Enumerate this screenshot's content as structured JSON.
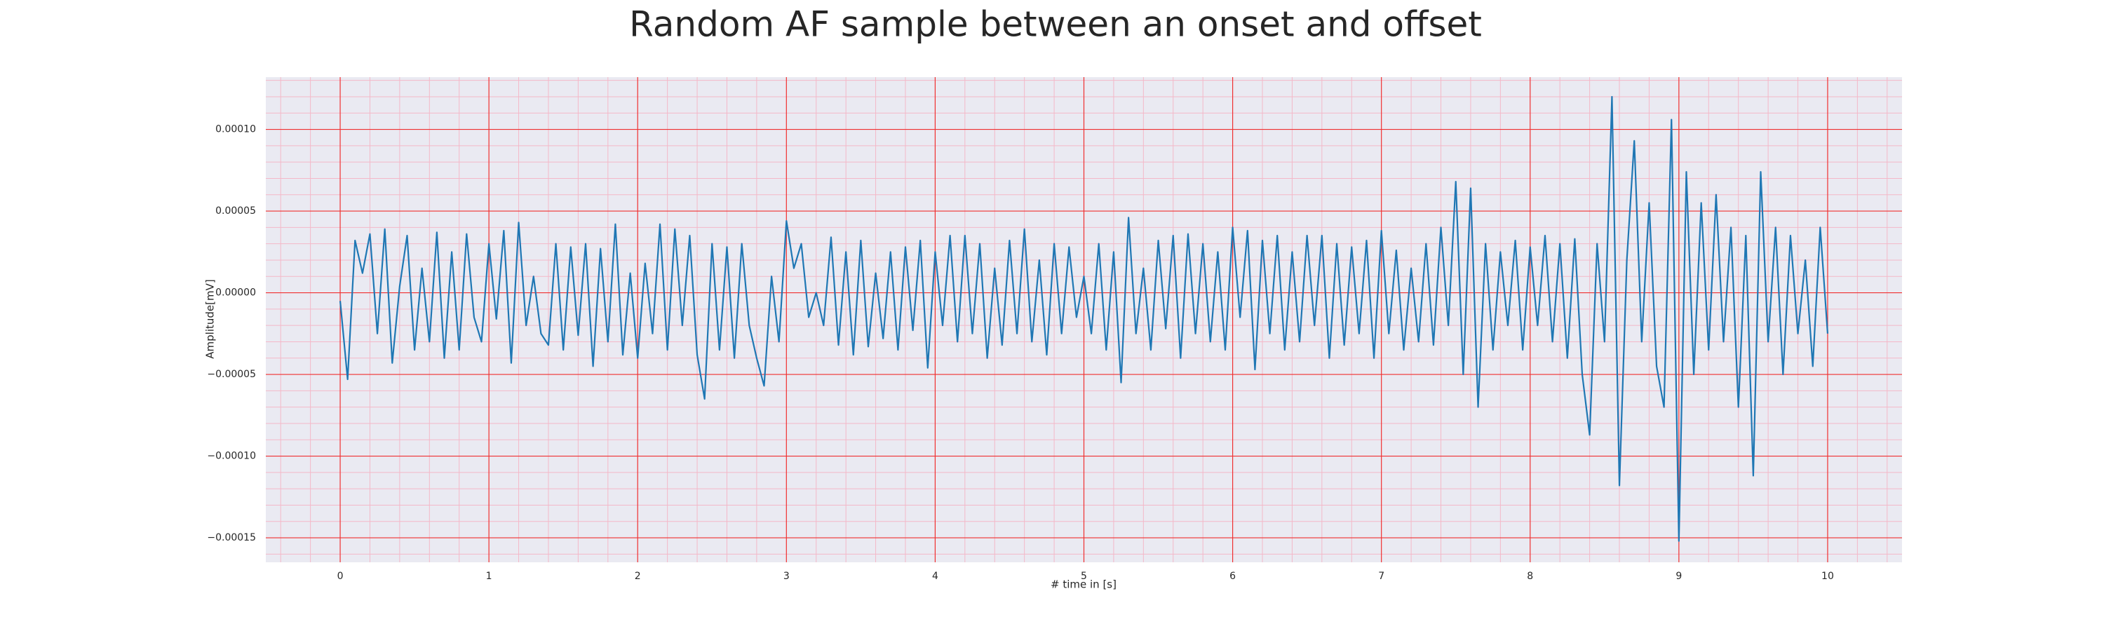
{
  "chart_data": {
    "type": "line",
    "title": "Random AF sample between an onset and offset",
    "xlabel": "# time in [s]",
    "ylabel": "Amplitude[mV]",
    "xlim": [
      -0.5,
      10.5
    ],
    "ylim": [
      -0.000165,
      0.000132
    ],
    "xticks": [
      0,
      1,
      2,
      3,
      4,
      5,
      6,
      7,
      8,
      9,
      10
    ],
    "yticks": [
      {
        "value": -0.00015,
        "label": "−0.00015"
      },
      {
        "value": -0.0001,
        "label": "−0.00010"
      },
      {
        "value": -5e-05,
        "label": "−0.00005"
      },
      {
        "value": 0,
        "label": "0.00000"
      },
      {
        "value": 5e-05,
        "label": "0.00005"
      },
      {
        "value": 0.0001,
        "label": "0.00010"
      }
    ],
    "xticks_minor": [
      -0.4,
      -0.2,
      0.2,
      0.4,
      0.6,
      0.8,
      1.2,
      1.4,
      1.6,
      1.8,
      2.2,
      2.4,
      2.6,
      2.8,
      3.2,
      3.4,
      3.6,
      3.8,
      4.2,
      4.4,
      4.6,
      4.8,
      5.2,
      5.4,
      5.6,
      5.8,
      6.2,
      6.4,
      6.6,
      6.8,
      7.2,
      7.4,
      7.6,
      7.8,
      8.2,
      8.4,
      8.6,
      8.8,
      9.2,
      9.4,
      9.6,
      9.8,
      10.2,
      10.4
    ],
    "yticks_minor": [
      -0.00016,
      -0.00014,
      -0.00013,
      -0.00012,
      -0.00011,
      -9e-05,
      -8e-05,
      -7e-05,
      -6e-05,
      -4e-05,
      -3e-05,
      -2e-05,
      -1e-05,
      1e-05,
      2e-05,
      3e-05,
      4e-05,
      6e-05,
      7e-05,
      8e-05,
      9e-05,
      0.00011,
      0.00012,
      0.00013
    ],
    "grid": true,
    "background": "#eaeaf2",
    "grid_color": "#f03030",
    "minor_grid_color": "#f4b8c8",
    "x": [
      0,
      0.05,
      0.1,
      0.15,
      0.2,
      0.25,
      0.3,
      0.35,
      0.4,
      0.45,
      0.5,
      0.55,
      0.6,
      0.65,
      0.7,
      0.75,
      0.8,
      0.85,
      0.9,
      0.95,
      1,
      1.05,
      1.1,
      1.15,
      1.2,
      1.25,
      1.3,
      1.35,
      1.4,
      1.45,
      1.5,
      1.55,
      1.6,
      1.65,
      1.7,
      1.75,
      1.8,
      1.85,
      1.9,
      1.95,
      2,
      2.05,
      2.1,
      2.15,
      2.2,
      2.25,
      2.3,
      2.35,
      2.4,
      2.45,
      2.5,
      2.55,
      2.6,
      2.65,
      2.7,
      2.75,
      2.8,
      2.85,
      2.9,
      2.95,
      3,
      3.05,
      3.1,
      3.15,
      3.2,
      3.25,
      3.3,
      3.35,
      3.4,
      3.45,
      3.5,
      3.55,
      3.6,
      3.65,
      3.7,
      3.75,
      3.8,
      3.85,
      3.9,
      3.95,
      4,
      4.05,
      4.1,
      4.15,
      4.2,
      4.25,
      4.3,
      4.35,
      4.4,
      4.45,
      4.5,
      4.55,
      4.6,
      4.65,
      4.7,
      4.75,
      4.8,
      4.85,
      4.9,
      4.95,
      5,
      5.05,
      5.1,
      5.15,
      5.2,
      5.25,
      5.3,
      5.35,
      5.4,
      5.45,
      5.5,
      5.55,
      5.6,
      5.65,
      5.7,
      5.75,
      5.8,
      5.85,
      5.9,
      5.95,
      6,
      6.05,
      6.1,
      6.15,
      6.2,
      6.25,
      6.3,
      6.35,
      6.4,
      6.45,
      6.5,
      6.55,
      6.6,
      6.65,
      6.7,
      6.75,
      6.8,
      6.85,
      6.9,
      6.95,
      7,
      7.05,
      7.1,
      7.15,
      7.2,
      7.25,
      7.3,
      7.35,
      7.4,
      7.45,
      7.5,
      7.55,
      7.6,
      7.65,
      7.7,
      7.75,
      7.8,
      7.85,
      7.9,
      7.95,
      8,
      8.05,
      8.1,
      8.15,
      8.2,
      8.25,
      8.3,
      8.35,
      8.4,
      8.45,
      8.5,
      8.55,
      8.6,
      8.65,
      8.7,
      8.75,
      8.8,
      8.85,
      8.9,
      8.95,
      9,
      9.05,
      9.1,
      9.15,
      9.2,
      9.25,
      9.3,
      9.35,
      9.4,
      9.45,
      9.5,
      9.55,
      9.6,
      9.65,
      9.7,
      9.75,
      9.8,
      9.85,
      9.9,
      9.95,
      10
    ],
    "series": [
      {
        "color": "#1f77b4",
        "values": [
          -5e-06,
          -5.3e-05,
          3.2e-05,
          1.2e-05,
          3.6e-05,
          -2.5e-05,
          3.9e-05,
          -4.3e-05,
          4e-06,
          3.5e-05,
          -3.5e-05,
          1.5e-05,
          -3e-05,
          3.7e-05,
          -4e-05,
          2.5e-05,
          -3.5e-05,
          3.6e-05,
          -1.5e-05,
          -3e-05,
          3e-05,
          -1.6e-05,
          3.8e-05,
          -4.3e-05,
          4.3e-05,
          -2e-05,
          1e-05,
          -2.5e-05,
          -3.2e-05,
          3e-05,
          -3.5e-05,
          2.8e-05,
          -2.6e-05,
          3e-05,
          -4.5e-05,
          2.7e-05,
          -3e-05,
          4.2e-05,
          -3.8e-05,
          1.2e-05,
          -4e-05,
          1.8e-05,
          -2.5e-05,
          4.2e-05,
          -3.5e-05,
          3.9e-05,
          -2e-05,
          3.5e-05,
          -3.8e-05,
          -6.5e-05,
          3e-05,
          -3.5e-05,
          2.8e-05,
          -4e-05,
          3e-05,
          -2e-05,
          -4e-05,
          -5.7e-05,
          1e-05,
          -3e-05,
          4.4e-05,
          1.5e-05,
          3e-05,
          -1.5e-05,
          0,
          -2e-05,
          3.4e-05,
          -3.2e-05,
          2.5e-05,
          -3.8e-05,
          3.2e-05,
          -3.3e-05,
          1.2e-05,
          -2.8e-05,
          2.5e-05,
          -3.5e-05,
          2.8e-05,
          -2.3e-05,
          3.2e-05,
          -4.6e-05,
          2.5e-05,
          -2e-05,
          3.5e-05,
          -3e-05,
          3.5e-05,
          -2.5e-05,
          3e-05,
          -4e-05,
          1.5e-05,
          -3.2e-05,
          3.2e-05,
          -2.5e-05,
          3.9e-05,
          -3e-05,
          2e-05,
          -3.8e-05,
          3e-05,
          -2.5e-05,
          2.8e-05,
          -1.5e-05,
          1e-05,
          -2.5e-05,
          3e-05,
          -3.5e-05,
          2.5e-05,
          -5.5e-05,
          4.6e-05,
          -2.5e-05,
          1.5e-05,
          -3.5e-05,
          3.2e-05,
          -2.2e-05,
          3.5e-05,
          -4e-05,
          3.6e-05,
          -2.5e-05,
          3e-05,
          -3e-05,
          2.5e-05,
          -3.5e-05,
          4e-05,
          -1.5e-05,
          3.8e-05,
          -4.7e-05,
          3.2e-05,
          -2.5e-05,
          3.5e-05,
          -3.5e-05,
          2.5e-05,
          -3e-05,
          3.5e-05,
          -2e-05,
          3.5e-05,
          -4e-05,
          3e-05,
          -3.2e-05,
          2.8e-05,
          -2.5e-05,
          3.2e-05,
          -4e-05,
          3.8e-05,
          -2.5e-05,
          2.6e-05,
          -3.5e-05,
          1.5e-05,
          -3e-05,
          3e-05,
          -3.2e-05,
          4e-05,
          -2e-05,
          6.8e-05,
          -5e-05,
          6.4e-05,
          -7e-05,
          3e-05,
          -3.5e-05,
          2.5e-05,
          -2e-05,
          3.2e-05,
          -3.5e-05,
          2.8e-05,
          -2e-05,
          3.5e-05,
          -3e-05,
          3e-05,
          -4e-05,
          3.3e-05,
          -5e-05,
          -8.7e-05,
          3e-05,
          -3e-05,
          0.00012,
          -0.000118,
          2e-05,
          9.3e-05,
          -3e-05,
          5.5e-05,
          -4.5e-05,
          -7e-05,
          0.000106,
          -0.000152,
          7.4e-05,
          -5e-05,
          5.5e-05,
          -3.5e-05,
          6e-05,
          -3e-05,
          4e-05,
          -7e-05,
          3.5e-05,
          -0.000112,
          7.4e-05,
          -3e-05,
          4e-05,
          -5e-05,
          3.5e-05,
          -2.5e-05,
          2e-05,
          -4.5e-05,
          4e-05,
          -2.5e-05
        ]
      }
    ]
  }
}
